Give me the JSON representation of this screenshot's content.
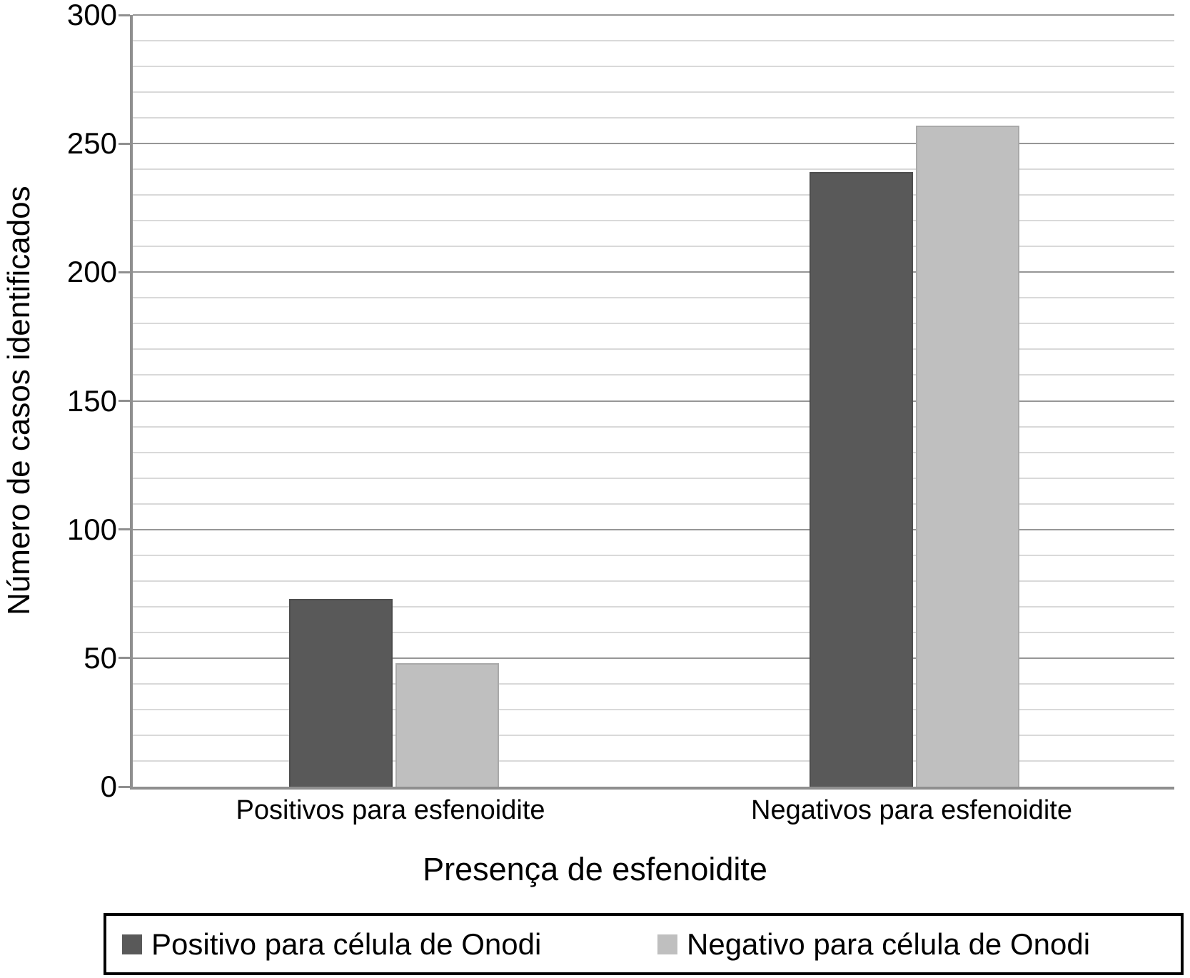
{
  "chart_data": {
    "type": "bar",
    "title": "",
    "xlabel": "Presença de esfenoidite",
    "ylabel": "Número de casos identificados",
    "categories": [
      "Positivos para esfenoidite",
      "Negativos para esfenoidite"
    ],
    "series": [
      {
        "name": "Positivo para célula de Onodi",
        "color": "#595959",
        "values": [
          73,
          239
        ]
      },
      {
        "name": "Negativo para célula de Onodi",
        "color": "#bfbfbf",
        "values": [
          48,
          257
        ]
      }
    ],
    "ylim": [
      0,
      300
    ],
    "yticks": [
      0,
      50,
      100,
      150,
      200,
      250,
      300
    ],
    "ytick_step": 50,
    "minor_gridline_step": 10,
    "grid": "horizontal minor and major gridlines on",
    "legend_position": "bottom",
    "colors": {
      "axis": "#8f8f8f",
      "major_gridline": "#969696",
      "minor_gridline": "#d9d9d9",
      "legend_border": "#000000",
      "text": "#000000",
      "background": "#ffffff"
    }
  }
}
